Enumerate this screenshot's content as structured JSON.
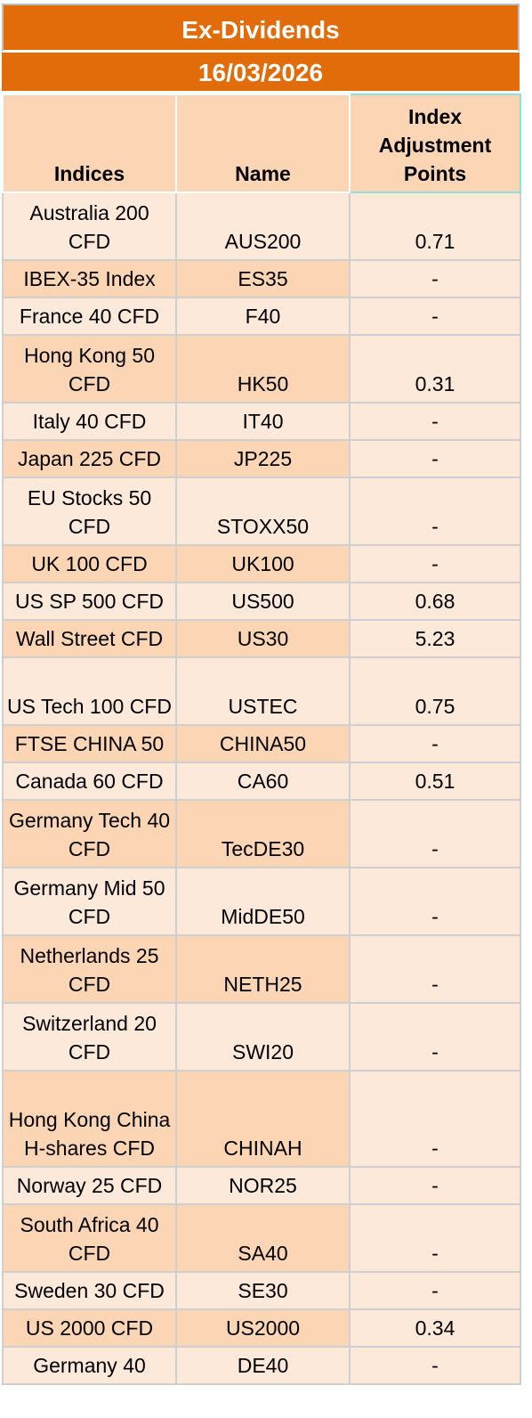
{
  "title": "Ex-Dividends",
  "date": "16/03/2026",
  "headers": {
    "indices": "Indices",
    "name": "Name",
    "adjustment": "Index Adjustment Points"
  },
  "rows": [
    {
      "index": "Australia 200 CFD",
      "name": "AUS200",
      "points": "0.71"
    },
    {
      "index": "IBEX-35 Index",
      "name": "ES35",
      "points": "-"
    },
    {
      "index": "France 40 CFD",
      "name": "F40",
      "points": "-"
    },
    {
      "index": "Hong Kong 50 CFD",
      "name": "HK50",
      "points": "0.31"
    },
    {
      "index": "Italy 40 CFD",
      "name": "IT40",
      "points": "-"
    },
    {
      "index": "Japan 225 CFD",
      "name": "JP225",
      "points": "-"
    },
    {
      "index": "EU Stocks 50 CFD",
      "name": "STOXX50",
      "points": "-"
    },
    {
      "index": "UK 100 CFD",
      "name": "UK100",
      "points": "-"
    },
    {
      "index": "US SP 500 CFD",
      "name": "US500",
      "points": "0.68"
    },
    {
      "index": "Wall Street CFD",
      "name": "US30",
      "points": "5.23"
    },
    {
      "index": "US Tech 100 CFD",
      "name": "USTEC",
      "points": "0.75"
    },
    {
      "index": "FTSE CHINA 50",
      "name": "CHINA50",
      "points": "-"
    },
    {
      "index": "Canada 60 CFD",
      "name": "CA60",
      "points": "0.51"
    },
    {
      "index": "Germany Tech 40 CFD",
      "name": "TecDE30",
      "points": "-"
    },
    {
      "index": "Germany Mid 50 CFD",
      "name": "MidDE50",
      "points": "-"
    },
    {
      "index": "Netherlands 25 CFD",
      "name": "NETH25",
      "points": "-"
    },
    {
      "index": "Switzerland 20 CFD",
      "name": "SWI20",
      "points": "-"
    },
    {
      "index": "Hong Kong China H-shares CFD",
      "name": "CHINAH",
      "points": "-"
    },
    {
      "index": "Norway 25 CFD",
      "name": "NOR25",
      "points": "-"
    },
    {
      "index": "South Africa 40 CFD",
      "name": "SA40",
      "points": "-"
    },
    {
      "index": "Sweden 30 CFD",
      "name": "SE30",
      "points": "-"
    },
    {
      "index": "US 2000 CFD",
      "name": "US2000",
      "points": "0.34"
    },
    {
      "index": "Germany 40",
      "name": "DE40",
      "points": "-"
    }
  ]
}
